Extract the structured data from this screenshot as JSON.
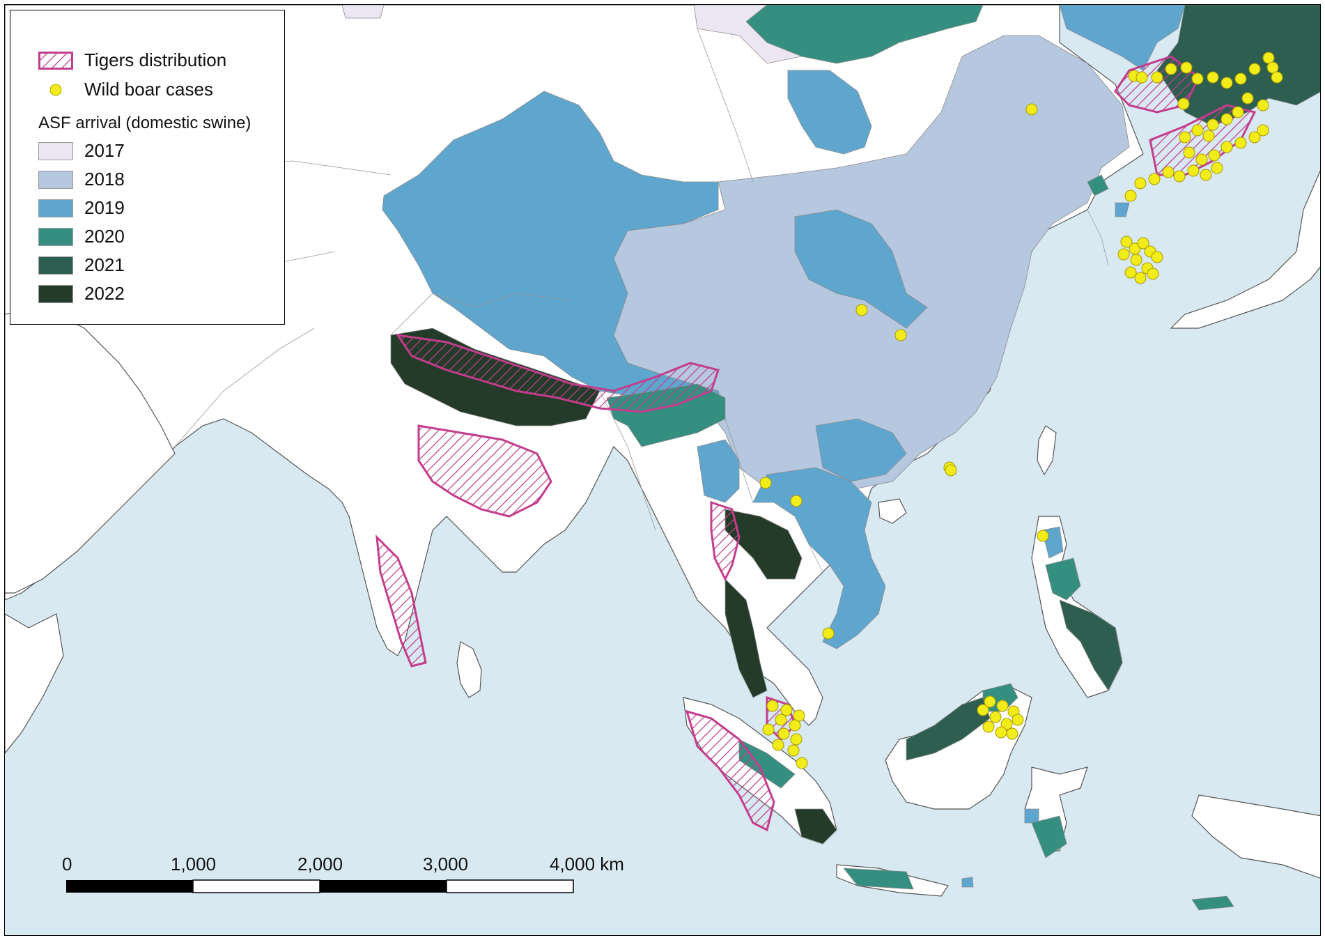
{
  "legend": {
    "tigers_label": "Tigers distribution",
    "boar_label": "Wild boar cases",
    "arrival_title": "ASF arrival (domestic swine)",
    "years": [
      {
        "label": "2017",
        "color": "#ece6f2"
      },
      {
        "label": "2018",
        "color": "#b6c7e0"
      },
      {
        "label": "2019",
        "color": "#5fa6cf"
      },
      {
        "label": "2020",
        "color": "#358f80"
      },
      {
        "label": "2021",
        "color": "#2e5e4f"
      },
      {
        "label": "2022",
        "color": "#233b28"
      }
    ]
  },
  "colors": {
    "sea": "#d9e9f1",
    "land": "#ffffff",
    "tiger": "#c33d8c",
    "boar": "#f2ec1a"
  },
  "scale_bar": {
    "labels": [
      "0",
      "1,000",
      "2,000",
      "3,000",
      "4,000 km"
    ]
  }
}
